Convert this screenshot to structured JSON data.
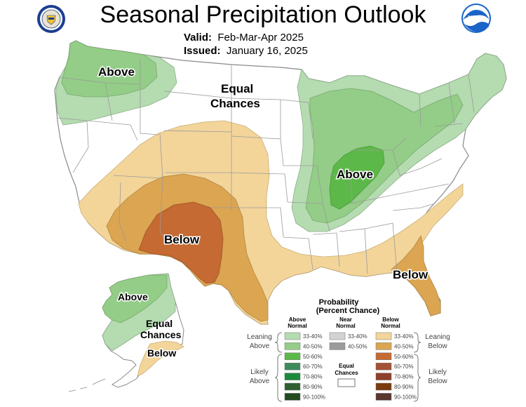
{
  "title": "Seasonal Precipitation Outlook",
  "valid_label": "Valid:",
  "valid_value": "Feb-Mar-Apr 2025",
  "issued_label": "Issued:",
  "issued_value": "January 16, 2025",
  "logos": {
    "left": "doc-seal",
    "right": "noaa-logo",
    "noaa_text": "NOAA"
  },
  "map_labels": {
    "nw_above": "Above",
    "ec_conus_line1": "Equal",
    "ec_conus_line2": "Chances",
    "ohio_above": "Above",
    "sw_below": "Below",
    "se_below": "Below",
    "ak_above": "Above",
    "ak_ec_line1": "Equal",
    "ak_ec_line2": "Chances",
    "ak_below": "Below"
  },
  "legend": {
    "title_line1": "Probability",
    "title_line2": "(Percent Chance)",
    "above_head_1": "Above",
    "above_head_2": "Normal",
    "near_head_1": "Near",
    "near_head_2": "Normal",
    "below_head_1": "Below",
    "below_head_2": "Normal",
    "leaning_left_1": "Leaning",
    "leaning_left_2": "Above",
    "leaning_right_1": "Leaning",
    "leaning_right_2": "Below",
    "likely_left_1": "Likely",
    "likely_left_2": "Above",
    "likely_right_1": "Likely",
    "likely_right_2": "Below",
    "ec_1": "Equal",
    "ec_2": "Chances",
    "above_rows": [
      {
        "label": "33-40%",
        "color": "#b5dbb0"
      },
      {
        "label": "40-50%",
        "color": "#93cd87"
      },
      {
        "label": "50-60%",
        "color": "#5cb848"
      },
      {
        "label": "60-70%",
        "color": "#3d8a5d"
      },
      {
        "label": "70-80%",
        "color": "#1a8a3c"
      },
      {
        "label": "80-90%",
        "color": "#2f5f30"
      },
      {
        "label": "90-100%",
        "color": "#234a1f"
      }
    ],
    "near_rows": [
      {
        "label": "33-40%",
        "color": "#d3d3d3"
      },
      {
        "label": "40-50%",
        "color": "#9b9b9b"
      }
    ],
    "below_rows": [
      {
        "label": "33-40%",
        "color": "#f3d59a"
      },
      {
        "label": "40-50%",
        "color": "#dba552"
      },
      {
        "label": "50-60%",
        "color": "#c46a32"
      },
      {
        "label": "60-70%",
        "color": "#a35234"
      },
      {
        "label": "70-80%",
        "color": "#8f3f2a"
      },
      {
        "label": "80-90%",
        "color": "#7a3b0d"
      },
      {
        "label": "90-100%",
        "color": "#5a3630"
      }
    ]
  },
  "colors": {
    "above_33": "#b5dbb0",
    "above_40": "#93cd87",
    "above_50": "#5cb848",
    "below_33": "#f3d59a",
    "below_40": "#dba552",
    "below_50": "#c46a32",
    "state_border": "#9a9a9a"
  }
}
